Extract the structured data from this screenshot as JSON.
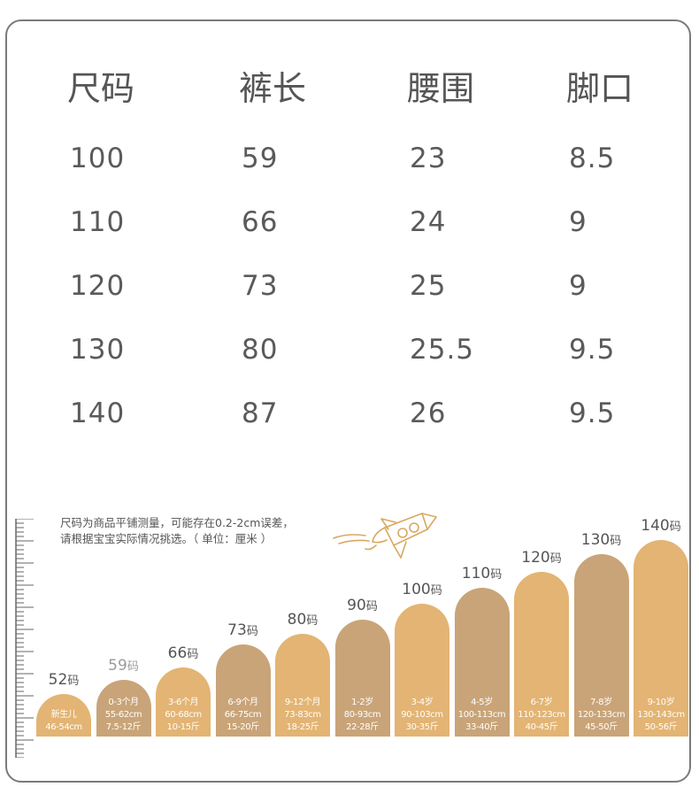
{
  "table": {
    "headers": [
      "尺码",
      "裤长",
      "腰围",
      "脚口"
    ],
    "rows": [
      [
        "100",
        "59",
        "23",
        "8.5"
      ],
      [
        "110",
        "66",
        "24",
        "9"
      ],
      [
        "120",
        "73",
        "25",
        "9"
      ],
      [
        "130",
        "80",
        "25.5",
        "9.5"
      ],
      [
        "140",
        "87",
        "26",
        "9.5"
      ]
    ]
  },
  "note": {
    "line1": "尺码为商品平铺测量，可能存在0.2-2cm误差，",
    "line2": "请根据宝宝实际情况挑选。（ 单位：厘米 ）"
  },
  "size_chart": {
    "unit_suffix": "码",
    "bars": [
      {
        "size": "52",
        "age": "新生儿",
        "height_cm": "46-54cm",
        "weight": "",
        "color": "#e3b473"
      },
      {
        "size": "59",
        "age": "0-3个月",
        "height_cm": "55-62cm",
        "weight": "7.5-12斤",
        "color": "#c9a478"
      },
      {
        "size": "66",
        "age": "3-6个月",
        "height_cm": "60-68cm",
        "weight": "10-15斤",
        "color": "#e3b473"
      },
      {
        "size": "73",
        "age": "6-9个月",
        "height_cm": "66-75cm",
        "weight": "15-20斤",
        "color": "#c9a478"
      },
      {
        "size": "80",
        "age": "9-12个月",
        "height_cm": "73-83cm",
        "weight": "18-25斤",
        "color": "#e3b473"
      },
      {
        "size": "90",
        "age": "1-2岁",
        "height_cm": "80-93cm",
        "weight": "22-28斤",
        "color": "#c9a478"
      },
      {
        "size": "100",
        "age": "3-4岁",
        "height_cm": "90-103cm",
        "weight": "30-35斤",
        "color": "#e3b473"
      },
      {
        "size": "110",
        "age": "4-5岁",
        "height_cm": "100-113cm",
        "weight": "33-40斤",
        "color": "#c9a478"
      },
      {
        "size": "120",
        "age": "6-7岁",
        "height_cm": "110-123cm",
        "weight": "40-45斤",
        "color": "#e3b473"
      },
      {
        "size": "130",
        "age": "7-8岁",
        "height_cm": "120-133cm",
        "weight": "45-50斤",
        "color": "#c9a478"
      },
      {
        "size": "140",
        "age": "9-10岁",
        "height_cm": "130-143cm",
        "weight": "50-56斤",
        "color": "#e3b473"
      }
    ]
  }
}
